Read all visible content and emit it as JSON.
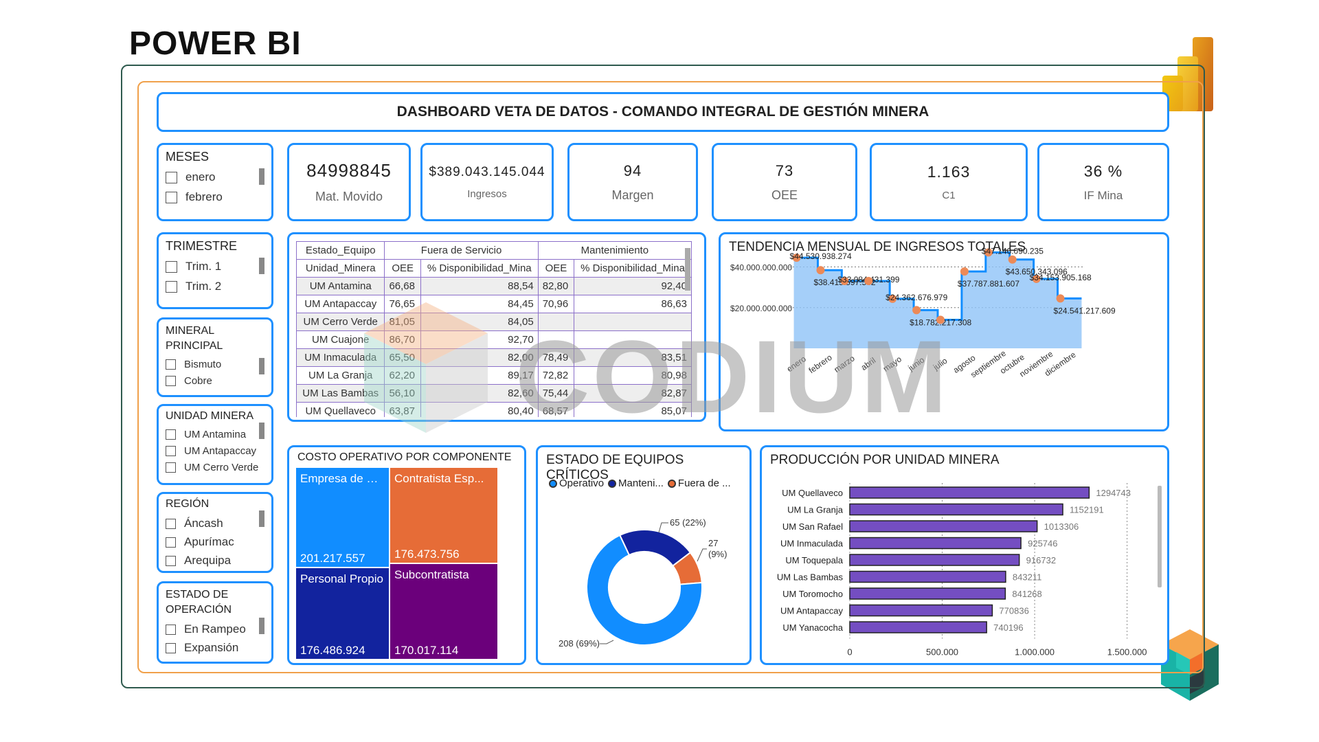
{
  "heading": "POWER BI",
  "dashboard_title": "DASHBOARD VETA DE DATOS - COMANDO INTEGRAL DE GESTIÓN MINERA",
  "slicers": {
    "meses": {
      "title": "MESES",
      "options": [
        "enero",
        "febrero"
      ]
    },
    "trimestre": {
      "title": "TRIMESTRE",
      "options": [
        "Trim. 1",
        "Trim. 2"
      ]
    },
    "mineral": {
      "title_line1": "MINERAL",
      "title_line2": "PRINCIPAL",
      "options": [
        "Bismuto",
        "Cobre"
      ]
    },
    "unidad": {
      "title": "UNIDAD MINERA",
      "options": [
        "UM Antamina",
        "UM Antapaccay",
        "UM Cerro Verde"
      ]
    },
    "region": {
      "title": "REGIÓN",
      "options": [
        "Áncash",
        "Apurímac",
        "Arequipa"
      ]
    },
    "estado": {
      "title_line1": "ESTADO DE",
      "title_line2": "OPERACIÓN",
      "options": [
        "En Rampeo",
        "Expansión"
      ]
    }
  },
  "kpis": [
    {
      "value": "84998845",
      "label": "Mat. Movido"
    },
    {
      "value": "$389.043.145.044",
      "label": "Ingresos"
    },
    {
      "value": "94",
      "label": "Margen"
    },
    {
      "value": "73",
      "label": "OEE"
    },
    {
      "value": "1.163",
      "label": "C1"
    },
    {
      "value": "36 %",
      "label": "IF Mina"
    }
  ],
  "table": {
    "h_estado": "Estado_Equipo",
    "h_fuera": "Fuera de Servicio",
    "h_mant": "Mantenimiento",
    "h_unidad": "Unidad_Minera",
    "h_oee1": "OEE",
    "h_disp1": "% Disponibilidad_Mina",
    "h_oee2": "OEE",
    "h_disp2": "% Disponibilidad_Mina",
    "rows": [
      [
        "UM Antamina",
        "66,68",
        "88,54",
        "82,80",
        "92,40"
      ],
      [
        "UM Antapaccay",
        "76,65",
        "84,45",
        "70,96",
        "86,63"
      ],
      [
        "UM Cerro Verde",
        "81,05",
        "84,05",
        "",
        ""
      ],
      [
        "UM Cuajone",
        "86,70",
        "92,70",
        "",
        ""
      ],
      [
        "UM Inmaculada",
        "65,50",
        "82,00",
        "78,49",
        "83,51"
      ],
      [
        "UM La Granja",
        "62,20",
        "89,17",
        "72,82",
        "80,98"
      ],
      [
        "UM Las Bambas",
        "56,10",
        "82,60",
        "75,44",
        "82,87"
      ],
      [
        "UM Quellaveco",
        "63,87",
        "80,40",
        "68,57",
        "85,07"
      ]
    ]
  },
  "trend": {
    "title": "TENDENCIA MENSUAL DE INGRESOS TOTALES"
  },
  "cost": {
    "title": "COSTO OPERATIVO POR COMPONENTE",
    "items": [
      {
        "label": "Empresa de Servi...",
        "value": "201.217.557",
        "color": "#118dff"
      },
      {
        "label": "Contratista Esp...",
        "value": "176.473.756",
        "color": "#e66c37"
      },
      {
        "label": "Personal Propio",
        "value": "176.486.924",
        "color": "#12239e"
      },
      {
        "label": "Subcontratista",
        "value": "170.017.114",
        "color": "#6b007b"
      }
    ]
  },
  "equip": {
    "title": "ESTADO DE EQUIPOS CRÍTICOS",
    "legend": [
      "Operativo",
      "Manteni...",
      "Fuera de ..."
    ],
    "legend_colors": [
      "#118dff",
      "#12239e",
      "#e66c37"
    ],
    "label_op": "208 (69%)",
    "label_mant": "65 (22%)",
    "label_fuera_1": "27",
    "label_fuera_2": "(9%)"
  },
  "prod": {
    "title": "PRODUCCIÓN POR UNIDAD MINERA"
  },
  "chart_data": [
    {
      "type": "line",
      "title": "TENDENCIA MENSUAL DE INGRESOS TOTALES",
      "categories": [
        "enero",
        "febrero",
        "marzo",
        "abril",
        "mayo",
        "junio",
        "julio",
        "agosto",
        "septiembre",
        "octubre",
        "noviembre",
        "diciembre"
      ],
      "values": [
        44530938274,
        38415597562,
        33084431399,
        33084431399,
        24362676979,
        18782217308,
        14000000000,
        37787881607,
        47146090235,
        43650343096,
        34153905168,
        24541217609
      ],
      "point_labels": [
        "$44.530.938.274",
        "$38.415.597.562",
        "$33.084.431.399",
        "",
        "$24.362.676.979",
        "$18.782.217.308",
        "",
        "$37.787.881.607",
        "$47.146.090.235",
        "$43.650.343.096",
        "$34.153.905.168",
        "$24.541.217.609"
      ],
      "ytick_labels": [
        "$20.000.000.000",
        "$40.000.000.000"
      ],
      "yticks": [
        20000000000,
        40000000000
      ],
      "ylim": [
        0,
        52000000000
      ],
      "grid": true
    },
    {
      "type": "pie",
      "title": "ESTADO DE EQUIPOS CRÍTICOS",
      "categories": [
        "Operativo",
        "Mantenimiento",
        "Fuera de Servicio"
      ],
      "values": [
        208,
        65,
        27
      ],
      "percent": [
        69,
        22,
        9
      ]
    },
    {
      "type": "bar",
      "title": "PRODUCCIÓN POR UNIDAD MINERA",
      "categories": [
        "UM Quellaveco",
        "UM La Granja",
        "UM San Rafael",
        "UM Inmaculada",
        "UM Toquepala",
        "UM Las Bambas",
        "UM Toromocho",
        "UM Antapaccay",
        "UM Yanacocha"
      ],
      "values": [
        1294743,
        1152191,
        1013306,
        925746,
        916732,
        843211,
        841268,
        770836,
        740196
      ],
      "xticks": [
        0,
        500000,
        1000000,
        1500000
      ],
      "xtick_labels": [
        "0",
        "500.000",
        "1.000.000",
        "1.500.000"
      ],
      "xlim": [
        0,
        1650000
      ]
    }
  ],
  "watermark": "CODIUM"
}
